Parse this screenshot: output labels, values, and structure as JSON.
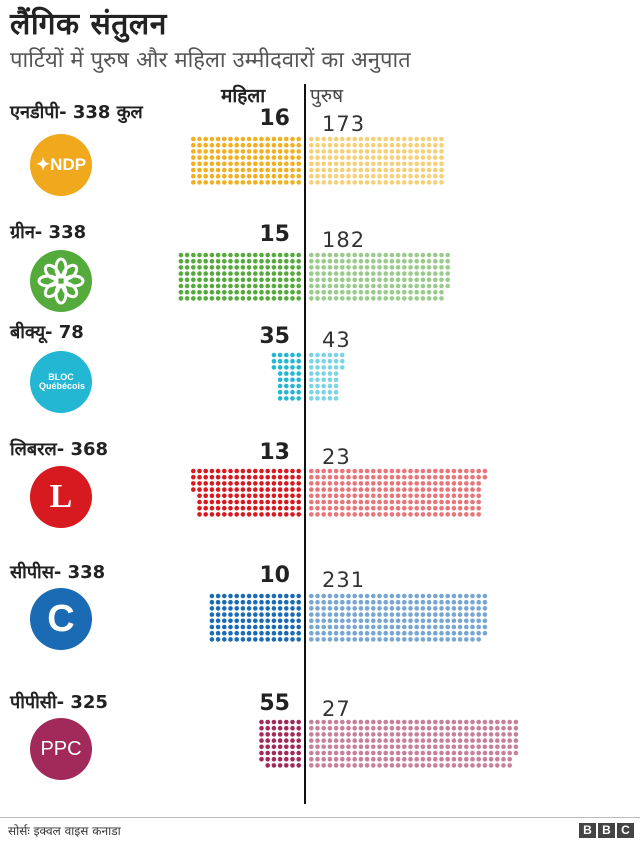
{
  "header": {
    "title": "लैंगिक संतुलन",
    "subtitle": "पार्टियों में पुरुष और महिला उम्मीदवारों का अनुपात"
  },
  "columns": {
    "women": "महिला",
    "men": "पुरुष"
  },
  "colors": {
    "ndp": "#f0b020",
    "green": "#55aa3c",
    "bloc": "#23b7d3",
    "liberal": "#d71920",
    "cpc": "#1a6bb3",
    "ppc": "#a22a5a"
  },
  "parties": [
    {
      "label": "एनडीपी- 338 कुल",
      "women": "16",
      "men": "173",
      "logo_text": "NDP",
      "logo_icon": "maple-leaf-icon"
    },
    {
      "label": "ग्रीन- 338",
      "women": "15",
      "men": "182",
      "logo_text": "",
      "logo_icon": "flower-icon"
    },
    {
      "label": "बीक्यू- 78",
      "women": "35",
      "men": "43",
      "logo_text": "BLOC Québécois",
      "logo_icon": "fleur-icon"
    },
    {
      "label": "लिबरल- 368",
      "women": "13",
      "men": "23",
      "logo_text": "L",
      "logo_icon": "maple-leaf-icon"
    },
    {
      "label": "सीपीस- 338",
      "women": "10",
      "men": "231",
      "logo_text": "C",
      "logo_icon": "c-logo-icon"
    },
    {
      "label": "पीपीसी- 325",
      "women": "55",
      "men": "27",
      "logo_text": "PPC",
      "logo_icon": "ppc-logo-icon"
    }
  ],
  "chart_data": {
    "type": "bar",
    "title": "लैंगिक संतुलन",
    "subtitle": "पार्टियों में पुरुष और महिला उम्मीदवारों का अनुपात",
    "categories": [
      "एनडीपी- 338 कुल",
      "ग्रीन- 338",
      "बीक्यू- 78",
      "लिबरल- 368",
      "सीपीस- 338",
      "पीपीसी- 325"
    ],
    "series": [
      {
        "name": "महिला",
        "values": [
          16,
          15,
          35,
          13,
          10,
          55
        ],
        "dots": [
          144,
          160,
          35,
          140,
          120,
          55
        ]
      },
      {
        "name": "पुरुष",
        "values": [
          173,
          182,
          43,
          23,
          231,
          27
        ],
        "dots": [
          176,
          182,
          43,
          226,
          231,
          270
        ]
      }
    ],
    "xlabel": "",
    "ylabel": "",
    "legend": "top"
  },
  "footer": {
    "source": "सोर्सः इक्वल वाइस कनाडा",
    "brand": [
      "B",
      "B",
      "C"
    ]
  }
}
